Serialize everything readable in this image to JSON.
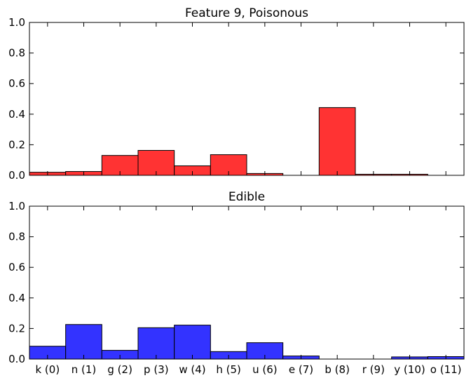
{
  "chart_data": [
    {
      "type": "bar",
      "title": "Feature 9, Poisonous",
      "categories": [
        "k (0)",
        "n (1)",
        "g (2)",
        "p (3)",
        "w (4)",
        "h (5)",
        "u (6)",
        "e (7)",
        "b (8)",
        "r (9)",
        "y (10)",
        "o (11)"
      ],
      "values": [
        0.02,
        0.025,
        0.13,
        0.163,
        0.062,
        0.135,
        0.012,
        0.0,
        0.443,
        0.007,
        0.007,
        0.0
      ],
      "ylim": [
        0,
        1.0
      ],
      "yticks": [
        "0.0",
        "0.2",
        "0.4",
        "0.6",
        "0.8",
        "1.0"
      ],
      "show_x_tick_labels": false,
      "color": "#ff3333"
    },
    {
      "type": "bar",
      "title": "Edible",
      "categories": [
        "k (0)",
        "n (1)",
        "g (2)",
        "p (3)",
        "w (4)",
        "h (5)",
        "u (6)",
        "e (7)",
        "b (8)",
        "r (9)",
        "y (10)",
        "o (11)"
      ],
      "values": [
        0.084,
        0.226,
        0.057,
        0.205,
        0.222,
        0.049,
        0.107,
        0.02,
        0.0,
        0.0,
        0.014,
        0.016
      ],
      "ylim": [
        0,
        1.0
      ],
      "yticks": [
        "0.0",
        "0.2",
        "0.4",
        "0.6",
        "0.8",
        "1.0"
      ],
      "show_x_tick_labels": true,
      "color": "#3333ff"
    }
  ]
}
